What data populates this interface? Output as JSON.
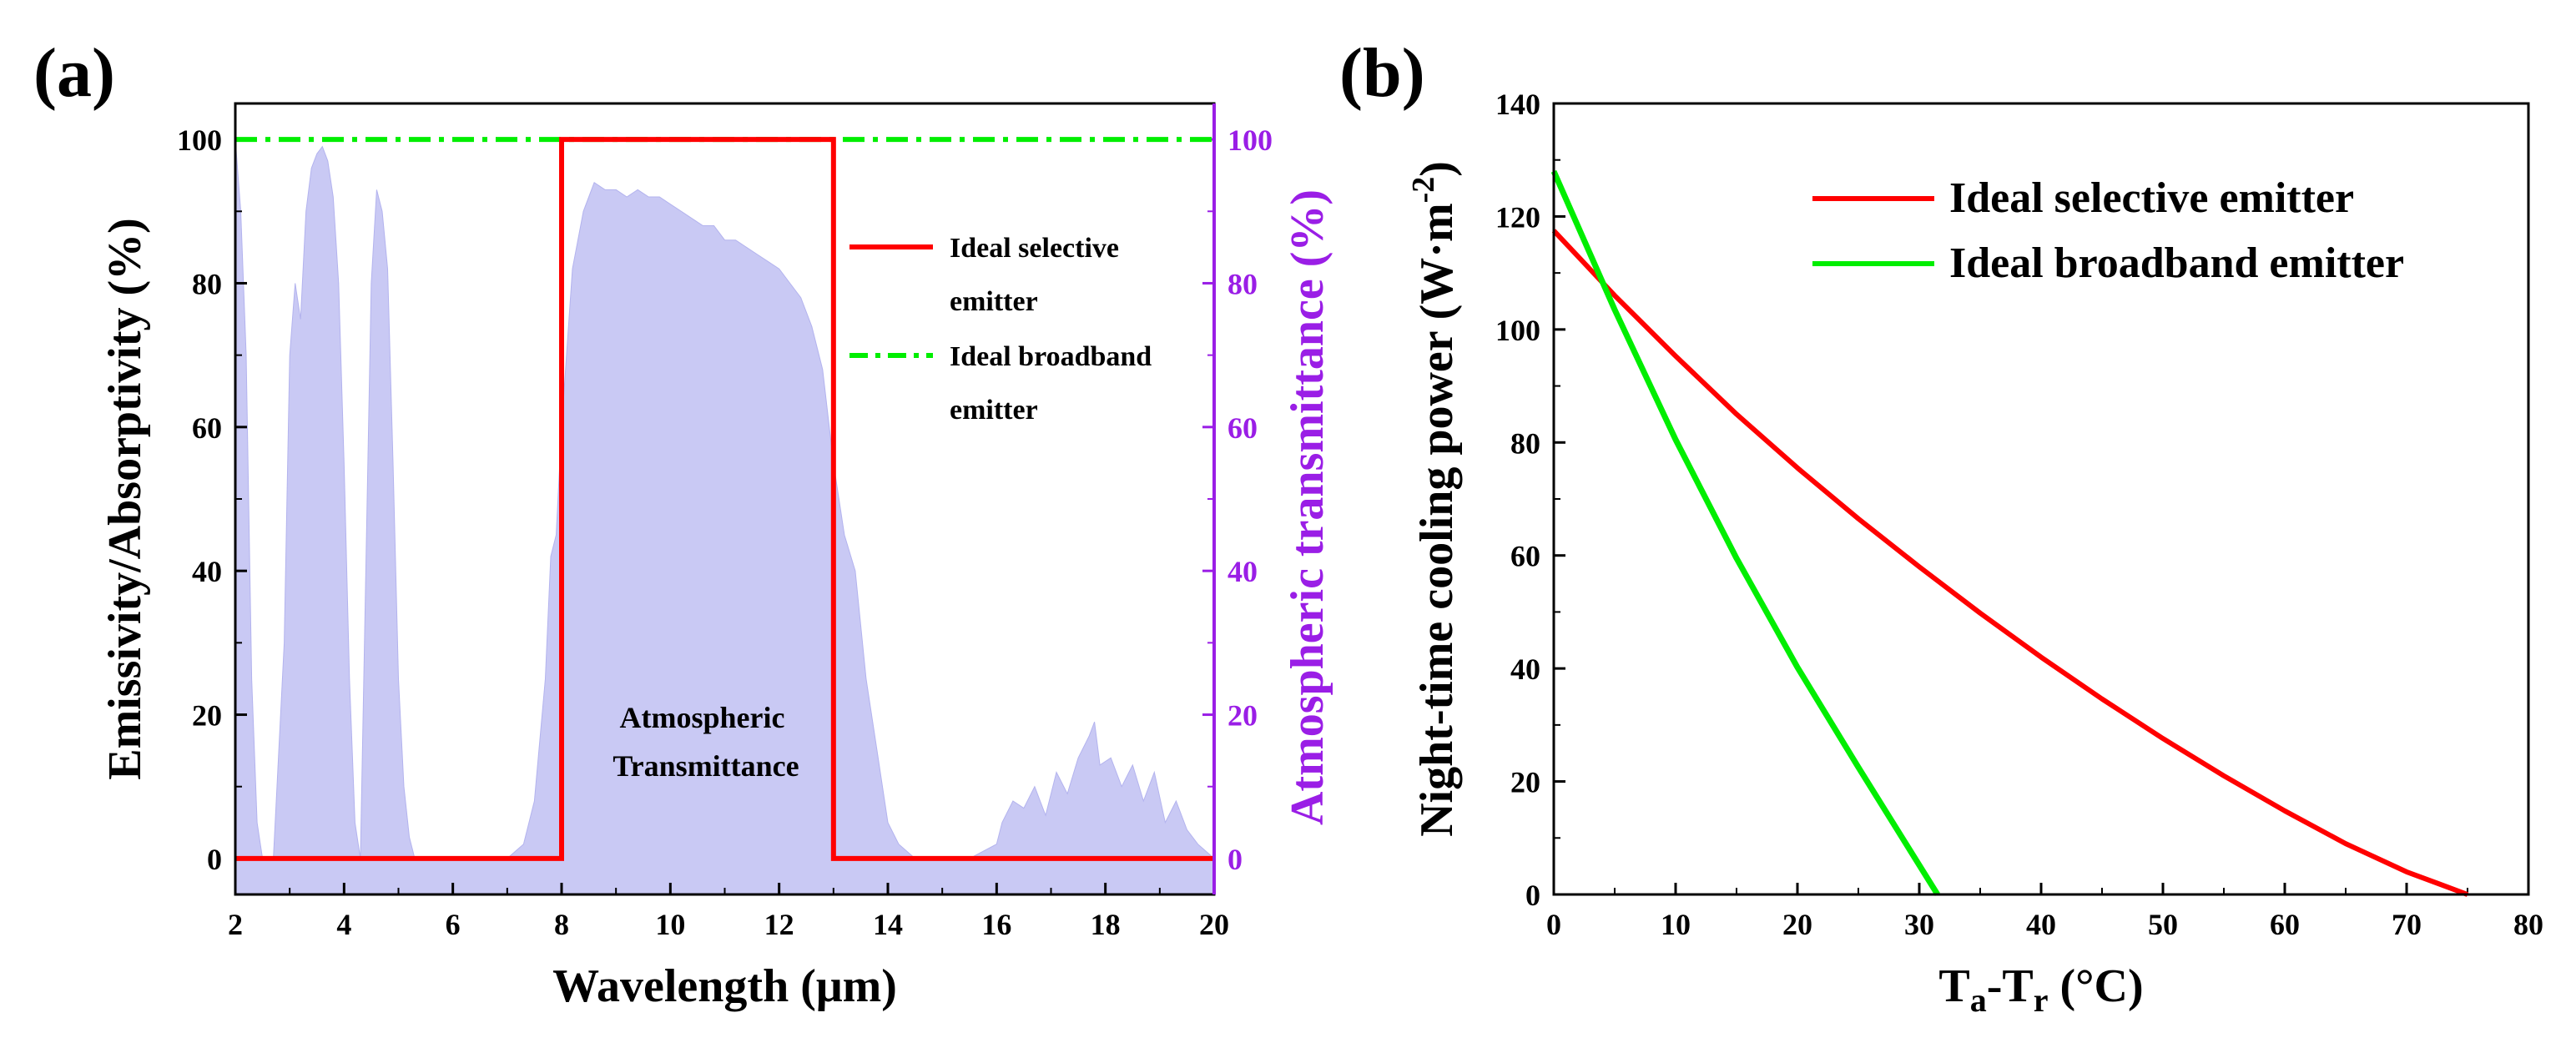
{
  "colors": {
    "selective": "#ff0000",
    "broadband": "#00ee00",
    "transmittance": "#c9c9f4",
    "right_axis": "#9a1ee6",
    "axis": "#000000"
  },
  "chart_data": [
    {
      "panel": "(a)",
      "type": "line",
      "xlabel": "Wavelength (μm)",
      "ylabel": "Emissivity/Absorptivity (%)",
      "y2label": "Atmospheric transmittance (%)",
      "xlim": [
        2,
        20
      ],
      "ylim": [
        -5,
        105
      ],
      "y2lim": [
        -5,
        105
      ],
      "xticks": [
        "2",
        "4",
        "6",
        "8",
        "10",
        "12",
        "14",
        "16",
        "18",
        "20"
      ],
      "yticks": [
        "0",
        "20",
        "40",
        "60",
        "80",
        "100"
      ],
      "y2ticks": [
        "0",
        "20",
        "40",
        "60",
        "80",
        "100"
      ],
      "annotation": [
        "Atmospheric",
        "Transmittance"
      ],
      "legend": [
        {
          "name": "selective",
          "lines": [
            "Ideal selective",
            "emitter"
          ]
        },
        {
          "name": "broadband",
          "lines": [
            "Ideal broadband",
            "emitter"
          ]
        }
      ],
      "series": [
        {
          "name": "Ideal selective emitter",
          "style": "solid",
          "x": [
            2,
            8,
            8,
            13,
            13,
            20
          ],
          "y": [
            0,
            0,
            100,
            100,
            0,
            0
          ]
        },
        {
          "name": "Ideal broadband emitter",
          "style": "dash-dot",
          "x": [
            2,
            20
          ],
          "y": [
            100,
            100
          ]
        },
        {
          "name": "Atmospheric Transmittance",
          "style": "area",
          "x": [
            2.0,
            2.1,
            2.2,
            2.3,
            2.4,
            2.5,
            2.7,
            2.9,
            3.0,
            3.1,
            3.2,
            3.3,
            3.4,
            3.5,
            3.6,
            3.7,
            3.8,
            3.9,
            4.0,
            4.1,
            4.2,
            4.3,
            4.4,
            4.5,
            4.6,
            4.7,
            4.8,
            4.9,
            5.0,
            5.1,
            5.2,
            5.3,
            5.5,
            6.0,
            7.0,
            7.3,
            7.5,
            7.7,
            7.8,
            7.9,
            8.0,
            8.2,
            8.4,
            8.6,
            8.8,
            9.0,
            9.2,
            9.4,
            9.6,
            9.8,
            10.0,
            10.2,
            10.4,
            10.6,
            10.8,
            11.0,
            11.2,
            11.4,
            11.6,
            11.8,
            12.0,
            12.2,
            12.4,
            12.6,
            12.8,
            13.0,
            13.2,
            13.4,
            13.6,
            13.8,
            14.0,
            14.2,
            14.5,
            15.0,
            15.5,
            16.0,
            16.1,
            16.3,
            16.5,
            16.7,
            16.9,
            17.1,
            17.3,
            17.5,
            17.7,
            17.8,
            17.9,
            18.1,
            18.3,
            18.5,
            18.7,
            18.9,
            19.1,
            19.3,
            19.5,
            19.7,
            20.0
          ],
          "y": [
            100,
            90,
            70,
            25,
            5,
            0,
            0,
            30,
            70,
            80,
            75,
            90,
            96,
            98,
            99,
            97,
            92,
            80,
            55,
            25,
            5,
            0,
            40,
            80,
            93,
            90,
            82,
            55,
            25,
            10,
            3,
            0,
            0,
            0,
            0,
            2,
            8,
            25,
            42,
            45,
            60,
            82,
            90,
            94,
            93,
            93,
            92,
            93,
            92,
            92,
            91,
            90,
            89,
            88,
            88,
            86,
            86,
            85,
            84,
            83,
            82,
            80,
            78,
            74,
            68,
            55,
            45,
            40,
            25,
            15,
            5,
            2,
            0,
            0,
            0,
            2,
            5,
            8,
            7,
            10,
            6,
            12,
            9,
            14,
            17,
            19,
            13,
            14,
            10,
            13,
            8,
            12,
            5,
            8,
            4,
            2,
            0
          ]
        }
      ]
    },
    {
      "panel": "(b)",
      "type": "line",
      "xlabel_main": "T",
      "xlabel_sub1": "a",
      "xlabel_mid": "-T",
      "xlabel_sub2": "r",
      "xlabel_unit": " (°C)",
      "ylabel_main": "Night-time cooling power (W·m",
      "ylabel_sup": "-2",
      "ylabel_end": ")",
      "xlim": [
        0,
        80
      ],
      "ylim": [
        0,
        140
      ],
      "xticks": [
        "0",
        "10",
        "20",
        "30",
        "40",
        "50",
        "60",
        "70",
        "80"
      ],
      "yticks": [
        "0",
        "20",
        "40",
        "60",
        "80",
        "100",
        "120",
        "140"
      ],
      "legend": [
        {
          "name": "selective",
          "label": "Ideal selective emitter"
        },
        {
          "name": "broadband",
          "label": "Ideal broadband emitter"
        }
      ],
      "series": [
        {
          "name": "Ideal selective emitter",
          "x": [
            0,
            5,
            10,
            15,
            20,
            25,
            30,
            35,
            40,
            45,
            50,
            55,
            60,
            65,
            70,
            75
          ],
          "y": [
            117.5,
            106,
            95.3,
            85,
            75.5,
            66.5,
            58,
            49.8,
            42,
            34.6,
            27.6,
            21,
            14.8,
            9,
            4,
            0
          ]
        },
        {
          "name": "Ideal broadband emitter",
          "x": [
            0,
            5,
            10,
            15,
            20,
            25,
            31.5
          ],
          "y": [
            128,
            103.5,
            80.5,
            59.5,
            40.2,
            22.5,
            0
          ]
        }
      ]
    }
  ]
}
